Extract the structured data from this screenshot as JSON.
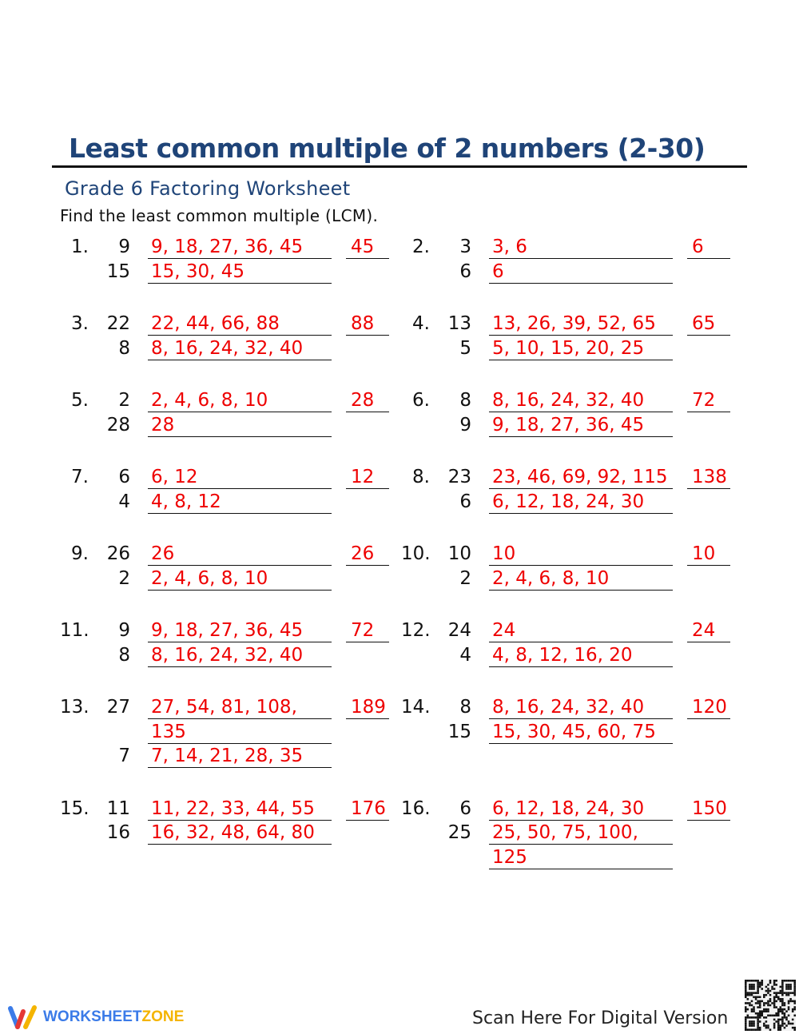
{
  "header": {
    "title": "Least common multiple of 2 numbers (2-30)",
    "subtitle": "Grade 6 Factoring Worksheet",
    "instructions": "Find the least common multiple (LCM)."
  },
  "problems": [
    {
      "label": "1.",
      "answer": "45",
      "lines": [
        {
          "n": "9",
          "m": "9, 18, 27, 36, 45"
        },
        {
          "n": "15",
          "m": "15, 30, 45"
        }
      ]
    },
    {
      "label": "2.",
      "answer": "6",
      "lines": [
        {
          "n": "3",
          "m": "3, 6"
        },
        {
          "n": "6",
          "m": "6"
        }
      ]
    },
    {
      "label": "3.",
      "answer": "88",
      "lines": [
        {
          "n": "22",
          "m": "22, 44, 66, 88"
        },
        {
          "n": "8",
          "m": "8, 16, 24, 32, 40"
        }
      ]
    },
    {
      "label": "4.",
      "answer": "65",
      "lines": [
        {
          "n": "13",
          "m": "13, 26, 39, 52, 65"
        },
        {
          "n": "5",
          "m": "5, 10, 15, 20, 25"
        }
      ]
    },
    {
      "label": "5.",
      "answer": "28",
      "lines": [
        {
          "n": "2",
          "m": "2, 4, 6, 8, 10"
        },
        {
          "n": "28",
          "m": "28"
        }
      ]
    },
    {
      "label": "6.",
      "answer": "72",
      "lines": [
        {
          "n": "8",
          "m": "8, 16, 24, 32, 40"
        },
        {
          "n": "9",
          "m": "9, 18, 27, 36, 45"
        }
      ]
    },
    {
      "label": "7.",
      "answer": "12",
      "lines": [
        {
          "n": "6",
          "m": "6, 12"
        },
        {
          "n": "4",
          "m": "4, 8, 12"
        }
      ]
    },
    {
      "label": "8.",
      "answer": "138",
      "lines": [
        {
          "n": "23",
          "m": "23, 46, 69, 92, 115"
        },
        {
          "n": "6",
          "m": "6, 12, 18, 24, 30"
        }
      ]
    },
    {
      "label": "9.",
      "answer": "26",
      "lines": [
        {
          "n": "26",
          "m": "26"
        },
        {
          "n": "2",
          "m": "2, 4, 6, 8, 10"
        }
      ]
    },
    {
      "label": "10.",
      "answer": "10",
      "lines": [
        {
          "n": "10",
          "m": "10"
        },
        {
          "n": "2",
          "m": "2, 4, 6, 8, 10"
        }
      ]
    },
    {
      "label": "11.",
      "answer": "72",
      "lines": [
        {
          "n": "9",
          "m": "9, 18, 27, 36, 45"
        },
        {
          "n": "8",
          "m": "8, 16, 24, 32, 40"
        }
      ]
    },
    {
      "label": "12.",
      "answer": "24",
      "lines": [
        {
          "n": "24",
          "m": "24"
        },
        {
          "n": "4",
          "m": "4, 8, 12, 16, 20"
        }
      ]
    },
    {
      "label": "13.",
      "answer": "189",
      "lines": [
        {
          "n": "27",
          "m": "27, 54, 81, 108,"
        },
        {
          "n": "",
          "m": "135"
        },
        {
          "n": "7",
          "m": "7, 14, 21, 28, 35"
        }
      ]
    },
    {
      "label": "14.",
      "answer": "120",
      "lines": [
        {
          "n": "8",
          "m": "8, 16, 24, 32, 40"
        },
        {
          "n": "15",
          "m": "15, 30, 45, 60, 75"
        }
      ]
    },
    {
      "label": "15.",
      "answer": "176",
      "lines": [
        {
          "n": "11",
          "m": "11, 22, 33, 44, 55"
        },
        {
          "n": "16",
          "m": "16, 32, 48, 64, 80"
        }
      ]
    },
    {
      "label": "16.",
      "answer": "150",
      "lines": [
        {
          "n": "6",
          "m": "6, 12, 18, 24, 30"
        },
        {
          "n": "25",
          "m": "25, 50, 75, 100,"
        },
        {
          "n": "",
          "m": "125"
        }
      ]
    }
  ],
  "footer": {
    "logo": {
      "part1": "WORKSHEET",
      "part2": "ZONE"
    },
    "scan_text": "Scan Here For Digital Version"
  },
  "colors": {
    "title": "#1f4478",
    "answers": "#e00000",
    "logo_blue": "#3b7be8",
    "logo_orange": "#f4b400"
  }
}
